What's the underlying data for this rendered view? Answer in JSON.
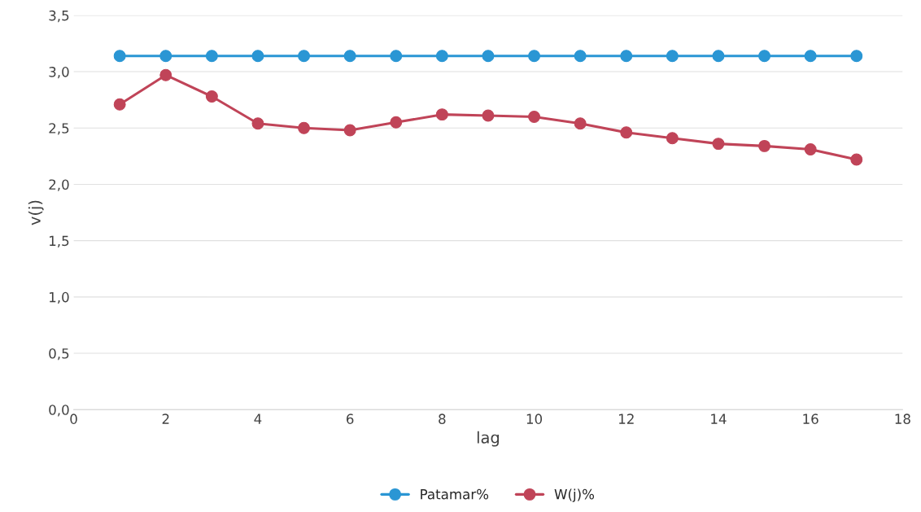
{
  "chart_data": {
    "type": "line",
    "xlabel": "lag",
    "ylabel": "v(j)",
    "x": [
      1,
      2,
      3,
      4,
      5,
      6,
      7,
      8,
      9,
      10,
      11,
      12,
      13,
      14,
      15,
      16,
      17
    ],
    "series": [
      {
        "name": "Patamar%",
        "color": "#2a96d4",
        "values": [
          3.14,
          3.14,
          3.14,
          3.14,
          3.14,
          3.14,
          3.14,
          3.14,
          3.14,
          3.14,
          3.14,
          3.14,
          3.14,
          3.14,
          3.14,
          3.14,
          3.14
        ]
      },
      {
        "name": "W(j)%",
        "color": "#c04458",
        "values": [
          2.71,
          2.97,
          2.78,
          2.54,
          2.5,
          2.48,
          2.55,
          2.62,
          2.61,
          2.6,
          2.54,
          2.46,
          2.41,
          2.36,
          2.34,
          2.31,
          2.22
        ]
      }
    ],
    "xlim": [
      0,
      18
    ],
    "xticks": [
      0,
      2,
      4,
      6,
      8,
      10,
      12,
      14,
      16,
      18
    ],
    "ylim": [
      0,
      3.5
    ],
    "yticks": [
      {
        "value": 0,
        "label": "0,0"
      },
      {
        "value": 0.5,
        "label": "0,5"
      },
      {
        "value": 1,
        "label": "1,0"
      },
      {
        "value": 1.5,
        "label": "1,5"
      },
      {
        "value": 2,
        "label": "2,0"
      },
      {
        "value": 2.5,
        "label": "2,5"
      },
      {
        "value": 3,
        "label": "3,0"
      },
      {
        "value": 3.5,
        "label": "3,5"
      }
    ],
    "grid": "y",
    "legend": "bottom",
    "marker": "circle",
    "line_style": "solid"
  }
}
